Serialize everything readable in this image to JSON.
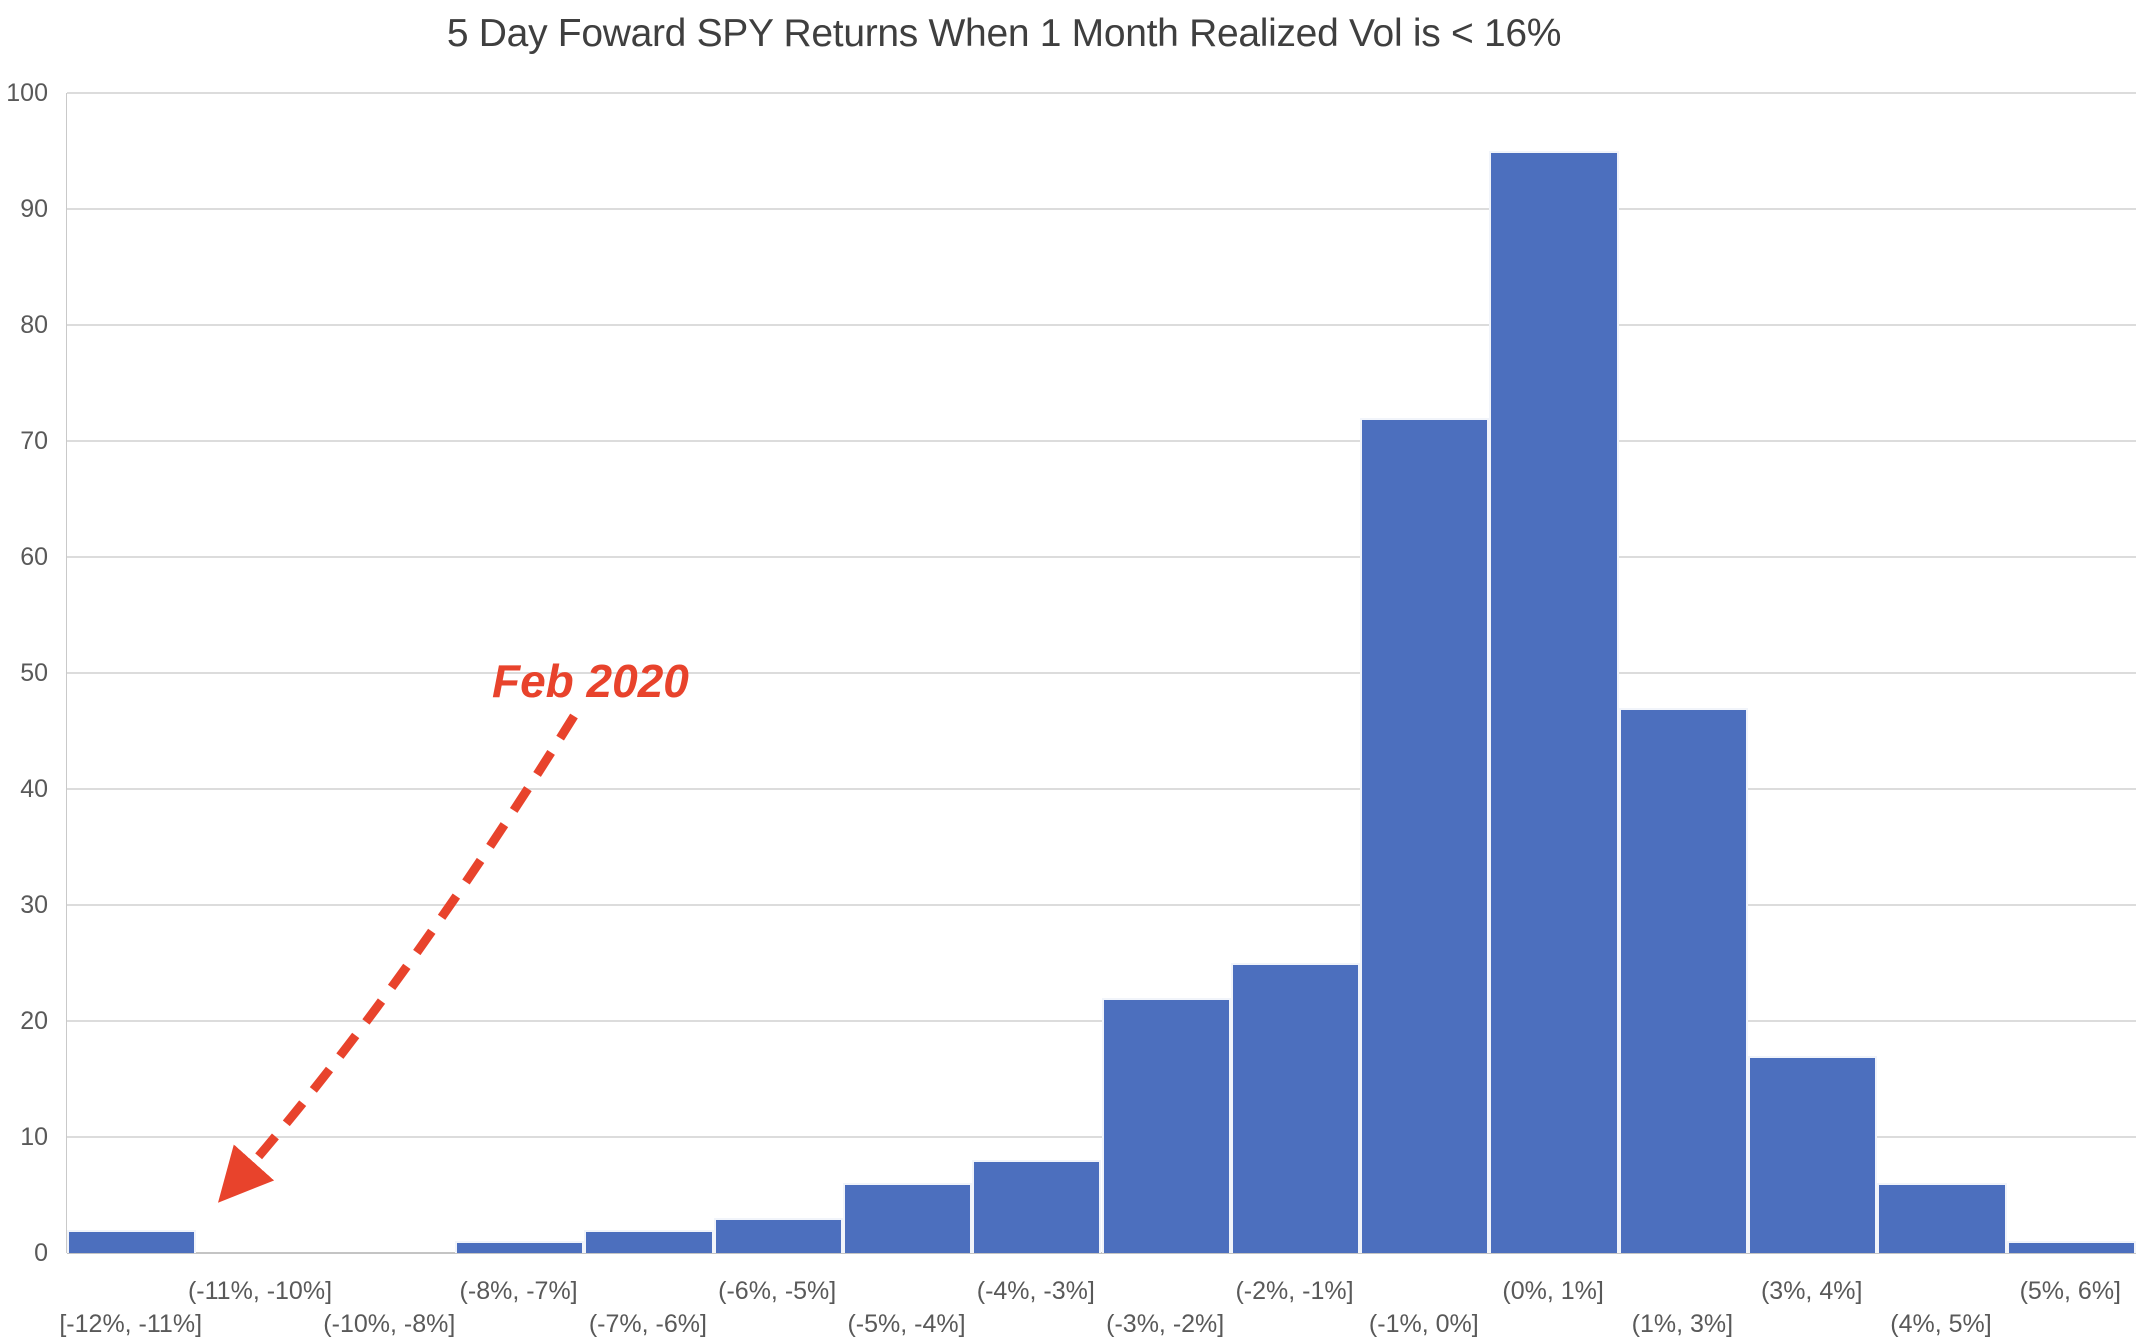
{
  "chart_data": {
    "type": "bar",
    "title": "5 Day Foward SPY Returns When 1 Month Realized Vol is < 16%",
    "categories": [
      "[-12%, -11%]",
      "(-11%, -10%]",
      "(-10%, -8%]",
      "(-8%, -7%]",
      "(-7%, -6%]",
      "(-6%, -5%]",
      "(-5%, -4%]",
      "(-4%, -3%]",
      "(-3%, -2%]",
      "(-2%, -1%]",
      "(-1%, 0%]",
      "(0%, 1%]",
      "(1%, 3%]",
      "(3%, 4%]",
      "(4%, 5%]",
      "(5%, 6%]"
    ],
    "values": [
      2,
      0,
      0,
      1,
      2,
      3,
      6,
      8,
      22,
      25,
      72,
      95,
      47,
      17,
      6,
      1
    ],
    "xlabel": "",
    "ylabel": "",
    "ylim": [
      0,
      100
    ],
    "ytick_interval": 10,
    "grid": "horizontal",
    "legend": "none",
    "x_label_rows": "staggered",
    "bar_color": "#4C6FBE",
    "bar_border_color": "#FFFFFF",
    "gridline_color": "#DCDCDC",
    "axis_line_color": "#C4C4C4",
    "label_color": "#595959",
    "title_color": "#3F3F3F"
  },
  "annotation": {
    "label": "Feb 2020",
    "color": "#E8432C",
    "style": "bold-italic",
    "arrow": "dashed",
    "target_category": "[-12%, -11%]"
  }
}
